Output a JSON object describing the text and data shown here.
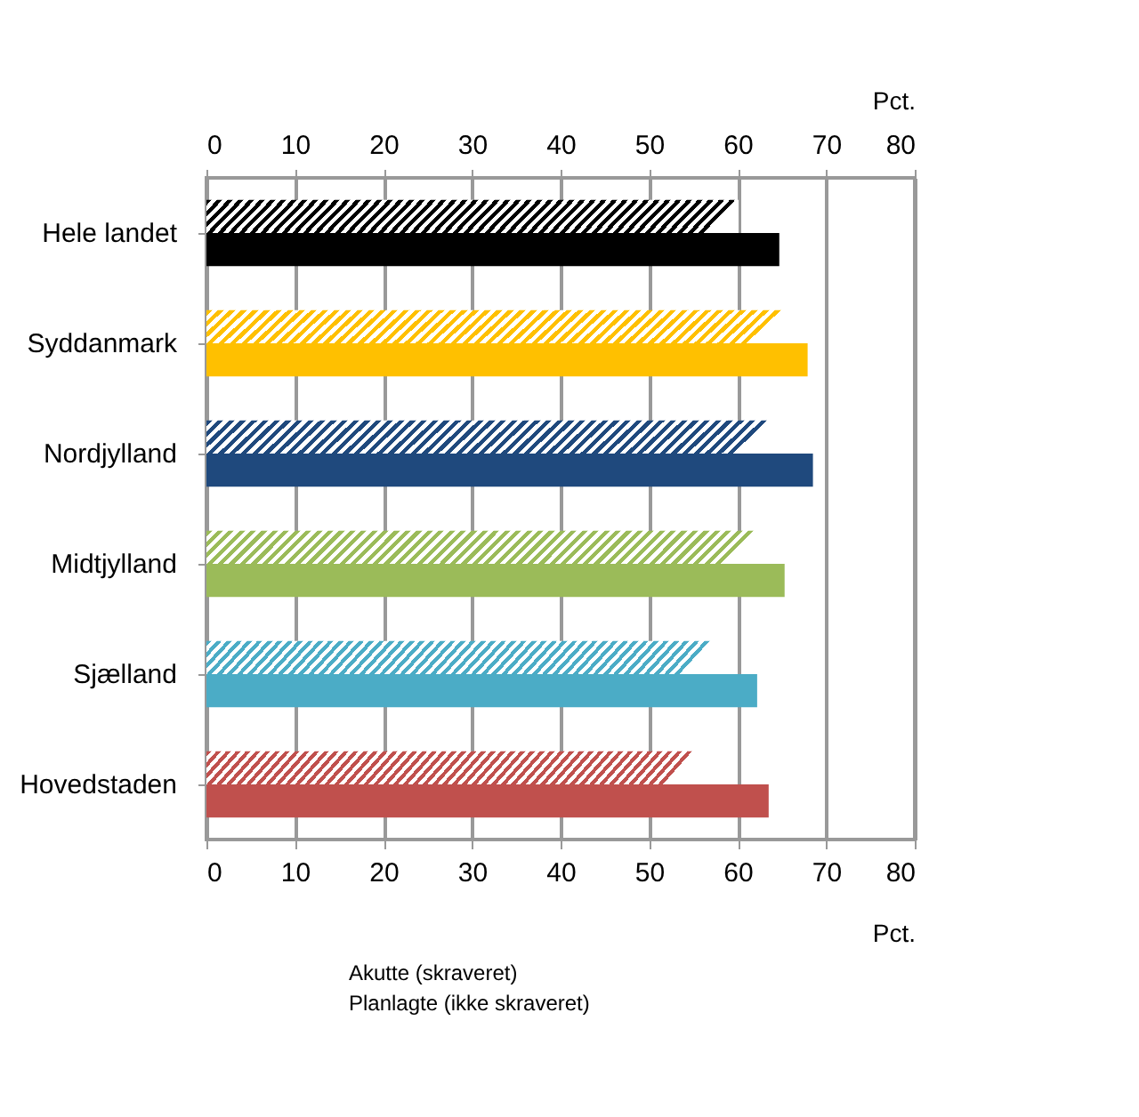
{
  "chart_data": {
    "type": "bar",
    "orientation": "horizontal",
    "categories": [
      "Hele landet",
      "Syddanmark",
      "Nordjylland",
      "Midtjylland",
      "Sjælland",
      "Hovedstaden"
    ],
    "series": [
      {
        "colors": [
          "#000000",
          "#ffc000",
          "#1f497d",
          "#9bbb59",
          "#4bacc6",
          "#c0504d"
        ],
        "values": [
          60.1,
          65.3,
          63.7,
          62.2,
          57.2,
          55.2
        ]
      },
      {
        "colors": [
          "#000000",
          "#ffc000",
          "#1f497d",
          "#9bbb59",
          "#4bacc6",
          "#c0504d"
        ],
        "values": [
          64.7,
          67.9,
          68.5,
          65.3,
          62.2,
          63.5
        ]
      }
    ],
    "xlim": [
      0,
      80
    ],
    "xticks": [
      0,
      10,
      20,
      30,
      40,
      50,
      60,
      70,
      80
    ],
    "xlabel": "Pct.",
    "x2lim": [
      0,
      80
    ],
    "x2ticks": [
      0,
      10,
      20,
      30,
      40,
      50,
      60,
      70,
      80
    ],
    "x2label": "Pct.",
    "grid": "x",
    "annotations": [
      "Akutte (skraveret)",
      "Planlagte (ikke skraveret)"
    ]
  }
}
